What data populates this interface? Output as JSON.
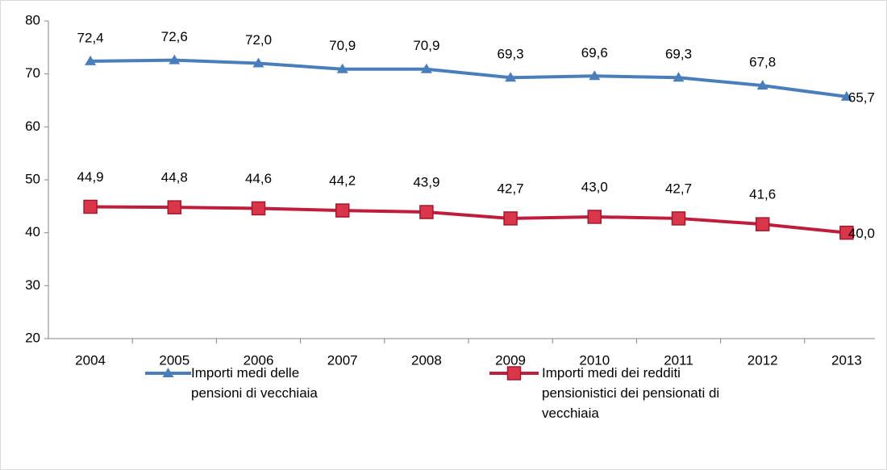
{
  "chart_data": {
    "type": "line",
    "categories": [
      "2004",
      "2005",
      "2006",
      "2007",
      "2008",
      "2009",
      "2010",
      "2011",
      "2012",
      "2013"
    ],
    "series": [
      {
        "name": "Importi medi delle pensioni di vecchiaia",
        "color": "#4a7ebb",
        "marker": "triangle",
        "values": [
          72.4,
          72.6,
          72.0,
          70.9,
          70.9,
          69.3,
          69.6,
          69.3,
          67.8,
          65.7
        ],
        "value_labels": [
          "72,4",
          "72,6",
          "72,0",
          "70,9",
          "70,9",
          "69,3",
          "69,6",
          "69,3",
          "67,8",
          "65,7"
        ]
      },
      {
        "name": "Importi medi dei redditi pensionistici dei pensionati di vecchiaia",
        "color": "#be1e3c",
        "marker": "square",
        "values": [
          44.9,
          44.8,
          44.6,
          44.2,
          43.9,
          42.7,
          43.0,
          42.7,
          41.6,
          40.0
        ],
        "value_labels": [
          "44,9",
          "44,8",
          "44,6",
          "44,2",
          "43,9",
          "42,7",
          "43,0",
          "42,7",
          "41,6",
          "40,0"
        ]
      }
    ],
    "ylim": [
      20,
      80
    ],
    "yticks": [
      20,
      30,
      40,
      50,
      60,
      70,
      80
    ],
    "grid": false,
    "legend": "bottom"
  }
}
